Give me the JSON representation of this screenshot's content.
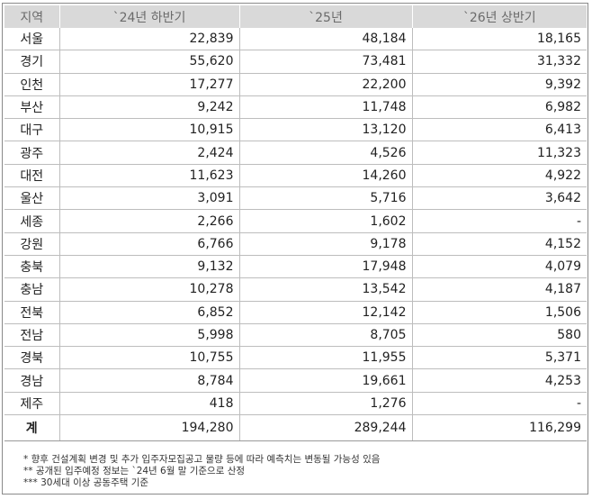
{
  "table": {
    "headers": [
      "지역",
      "`24년 하반기",
      "`25년",
      "`26년 상반기"
    ],
    "rows": [
      [
        "서울",
        "22,839",
        "48,184",
        "18,165"
      ],
      [
        "경기",
        "55,620",
        "73,481",
        "31,332"
      ],
      [
        "인천",
        "17,277",
        "22,200",
        "9,392"
      ],
      [
        "부산",
        "9,242",
        "11,748",
        "6,982"
      ],
      [
        "대구",
        "10,915",
        "13,120",
        "6,413"
      ],
      [
        "광주",
        "2,424",
        "4,526",
        "11,323"
      ],
      [
        "대전",
        "11,623",
        "14,260",
        "4,922"
      ],
      [
        "울산",
        "3,091",
        "5,716",
        "3,642"
      ],
      [
        "세종",
        "2,266",
        "1,602",
        "-"
      ],
      [
        "강원",
        "6,766",
        "9,178",
        "4,152"
      ],
      [
        "충북",
        "9,132",
        "17,948",
        "4,079"
      ],
      [
        "충남",
        "10,278",
        "13,542",
        "4,187"
      ],
      [
        "전북",
        "6,852",
        "12,142",
        "1,506"
      ],
      [
        "전남",
        "5,998",
        "8,705",
        "580"
      ],
      [
        "경북",
        "10,755",
        "11,955",
        "5,371"
      ],
      [
        "경남",
        "8,784",
        "19,661",
        "4,253"
      ],
      [
        "제주",
        "418",
        "1,276",
        "-"
      ]
    ],
    "total": [
      "계",
      "194,280",
      "289,244",
      "116,299"
    ]
  },
  "notes": [
    "* 향후 건설계획 변경 및 추가 입주자모집공고 물량 등에 따라 예측치는 변동될 가능성 있음",
    "** 공개된 입주예정 정보는 `24년 6월 말 기준으로 산정",
    "*** 30세대 이상 공동주택 기준"
  ]
}
